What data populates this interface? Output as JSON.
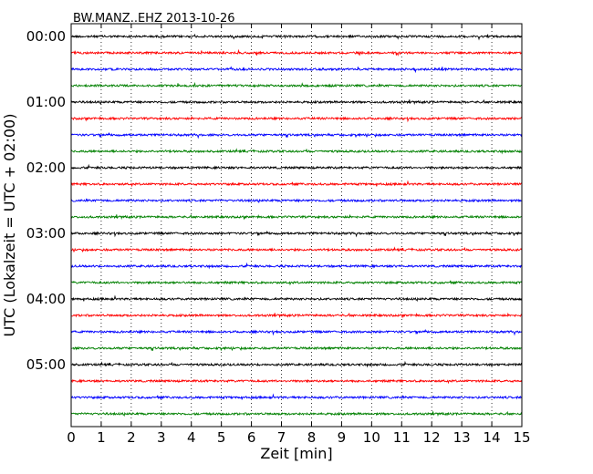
{
  "chart_data": {
    "type": "line",
    "title": "BW.MANZ..EHZ 2013-10-26",
    "xlabel": "Zeit  [min]",
    "ylabel": "UTC (Lokalzeit = UTC + 02:00)",
    "xlim": [
      0,
      15
    ],
    "xticks": [
      0,
      1,
      2,
      3,
      4,
      5,
      6,
      7,
      8,
      9,
      10,
      11,
      12,
      13,
      14,
      15
    ],
    "row_interval_minutes": 15,
    "row_count": 24,
    "yticks": [
      {
        "label": "00:00",
        "row": 0
      },
      {
        "label": "01:00",
        "row": 4
      },
      {
        "label": "02:00",
        "row": 8
      },
      {
        "label": "03:00",
        "row": 12
      },
      {
        "label": "04:00",
        "row": 16
      },
      {
        "label": "05:00",
        "row": 20
      }
    ],
    "trace_colors": [
      "#000000",
      "#ff0000",
      "#0000ff",
      "#008000"
    ],
    "grid": {
      "x": true,
      "style": "dotted"
    },
    "legend": "none"
  }
}
